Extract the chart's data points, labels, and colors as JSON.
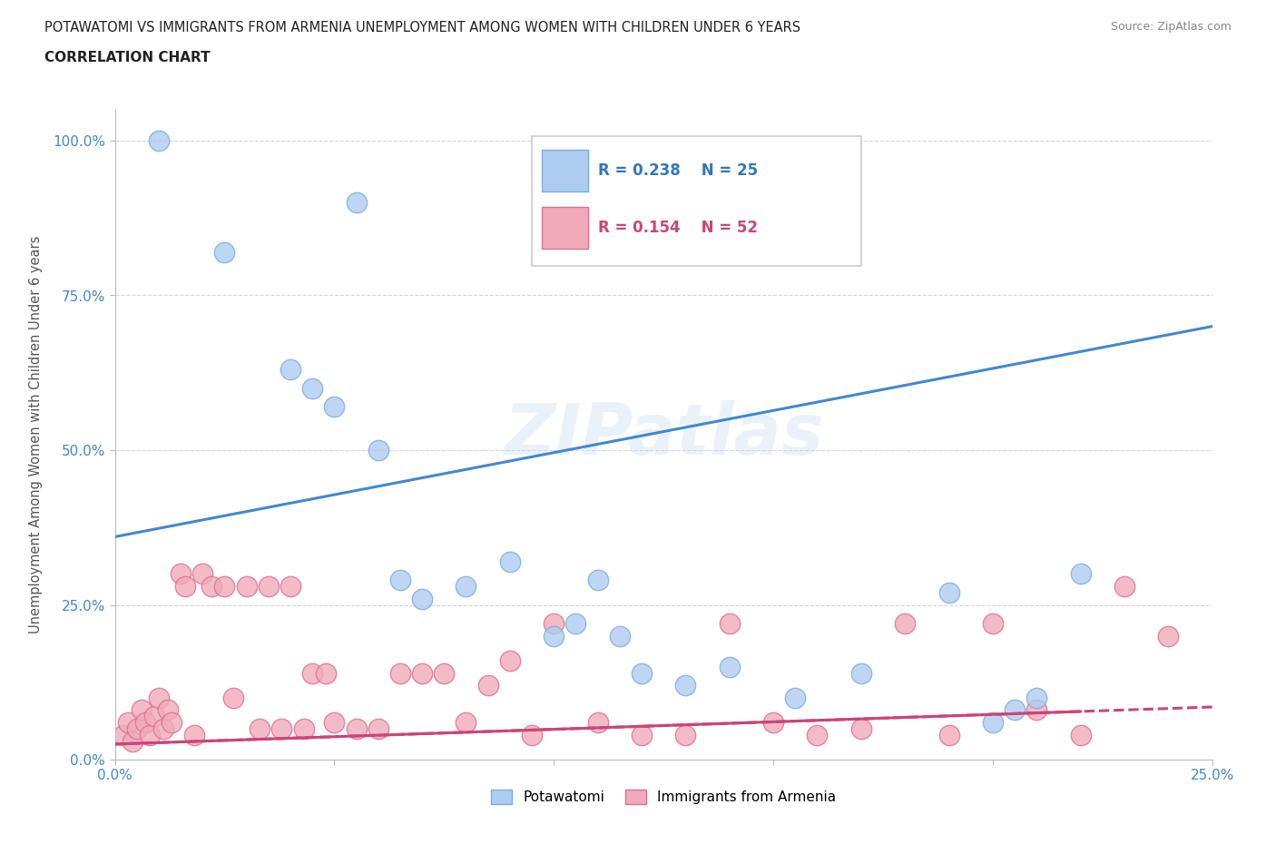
{
  "title_line1": "POTAWATOMI VS IMMIGRANTS FROM ARMENIA UNEMPLOYMENT AMONG WOMEN WITH CHILDREN UNDER 6 YEARS",
  "title_line2": "CORRELATION CHART",
  "source": "Source: ZipAtlas.com",
  "ylabel": "Unemployment Among Women with Children Under 6 years",
  "xlim": [
    0.0,
    0.25
  ],
  "ylim": [
    0.0,
    1.05
  ],
  "yticks": [
    0.0,
    0.25,
    0.5,
    0.75,
    1.0
  ],
  "ytick_labels": [
    "0.0%",
    "25.0%",
    "50.0%",
    "75.0%",
    "100.0%"
  ],
  "xticks": [
    0.0,
    0.05,
    0.1,
    0.15,
    0.2,
    0.25
  ],
  "xtick_labels": [
    "0.0%",
    "",
    "",
    "",
    "",
    "25.0%"
  ],
  "potawatomi_color": "#aeccf0",
  "potawatomi_edge_color": "#7aaedd",
  "armenia_color": "#f0aabb",
  "armenia_edge_color": "#dd7090",
  "line_potawatomi_color": "#4488cc",
  "line_armenia_color": "#cc4477",
  "R_potawatomi": 0.238,
  "N_potawatomi": 25,
  "R_armenia": 0.154,
  "N_armenia": 52,
  "watermark": "ZIPatlas",
  "potawatomi_x": [
    0.01,
    0.025,
    0.04,
    0.045,
    0.05,
    0.055,
    0.06,
    0.065,
    0.07,
    0.08,
    0.09,
    0.1,
    0.105,
    0.11,
    0.115,
    0.12,
    0.13,
    0.14,
    0.155,
    0.17,
    0.19,
    0.2,
    0.205,
    0.21,
    0.22
  ],
  "potawatomi_y": [
    1.0,
    0.82,
    0.63,
    0.6,
    0.57,
    0.9,
    0.5,
    0.29,
    0.26,
    0.28,
    0.32,
    0.2,
    0.22,
    0.29,
    0.2,
    0.14,
    0.12,
    0.15,
    0.1,
    0.14,
    0.27,
    0.06,
    0.08,
    0.1,
    0.3
  ],
  "armenia_x": [
    0.002,
    0.003,
    0.004,
    0.005,
    0.006,
    0.007,
    0.008,
    0.009,
    0.01,
    0.011,
    0.012,
    0.013,
    0.015,
    0.016,
    0.018,
    0.02,
    0.022,
    0.025,
    0.027,
    0.03,
    0.033,
    0.035,
    0.038,
    0.04,
    0.043,
    0.045,
    0.048,
    0.05,
    0.055,
    0.06,
    0.065,
    0.07,
    0.075,
    0.08,
    0.085,
    0.09,
    0.095,
    0.1,
    0.11,
    0.12,
    0.13,
    0.14,
    0.15,
    0.16,
    0.17,
    0.18,
    0.19,
    0.2,
    0.21,
    0.22,
    0.23,
    0.24
  ],
  "armenia_y": [
    0.04,
    0.06,
    0.03,
    0.05,
    0.08,
    0.06,
    0.04,
    0.07,
    0.1,
    0.05,
    0.08,
    0.06,
    0.3,
    0.28,
    0.04,
    0.3,
    0.28,
    0.28,
    0.1,
    0.28,
    0.05,
    0.28,
    0.05,
    0.28,
    0.05,
    0.14,
    0.14,
    0.06,
    0.05,
    0.05,
    0.14,
    0.14,
    0.14,
    0.06,
    0.12,
    0.16,
    0.04,
    0.22,
    0.06,
    0.04,
    0.04,
    0.22,
    0.06,
    0.04,
    0.05,
    0.22,
    0.04,
    0.22,
    0.08,
    0.04,
    0.28,
    0.2
  ],
  "line_pot_x0": 0.0,
  "line_pot_y0": 0.36,
  "line_pot_x1": 0.25,
  "line_pot_y1": 0.7,
  "line_arm_x0": 0.0,
  "line_arm_y0": 0.025,
  "line_arm_x1": 0.25,
  "line_arm_y1": 0.085
}
